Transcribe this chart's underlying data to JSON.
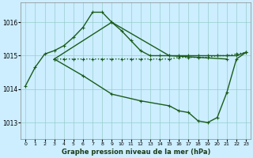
{
  "background_color": "#cceeff",
  "grid_color": "#99cccc",
  "line_color": "#1a5c1a",
  "title": "Graphe pression niveau de la mer (hPa)",
  "xlim": [
    -0.5,
    23.5
  ],
  "ylim": [
    1012.5,
    1016.6
  ],
  "yticks": [
    1013,
    1014,
    1015,
    1016
  ],
  "xticks": [
    0,
    1,
    2,
    3,
    4,
    5,
    6,
    7,
    8,
    9,
    10,
    11,
    12,
    13,
    14,
    15,
    16,
    17,
    18,
    19,
    20,
    21,
    22,
    23
  ],
  "series": [
    {
      "x": [
        3,
        4,
        5,
        6,
        7,
        8,
        9,
        10,
        11,
        12,
        13,
        14,
        15,
        16,
        17,
        18,
        19,
        20,
        21,
        22,
        23
      ],
      "y": [
        1014.9,
        1014.9,
        1014.9,
        1014.9,
        1014.9,
        1014.9,
        1014.9,
        1014.9,
        1014.9,
        1014.9,
        1014.9,
        1014.9,
        1014.9,
        1014.95,
        1014.95,
        1014.95,
        1014.95,
        1015.0,
        1015.0,
        1015.05,
        1015.1
      ],
      "ls": ":",
      "lw": 1.0,
      "marker": "+"
    },
    {
      "x": [
        0,
        1,
        2,
        3,
        4,
        5,
        6,
        7,
        8,
        9,
        10,
        11,
        12,
        13,
        14,
        15,
        16,
        17,
        18,
        19,
        20,
        21,
        22,
        23
      ],
      "y": [
        1014.1,
        1014.65,
        1015.05,
        1015.15,
        1015.3,
        1015.55,
        1015.85,
        1016.3,
        1016.3,
        1016.0,
        1015.75,
        1015.45,
        1015.15,
        1015.0,
        1015.0,
        1015.0,
        1015.0,
        1015.0,
        1015.0,
        1015.0,
        1015.0,
        1015.0,
        1015.0,
        1015.1
      ],
      "ls": "-",
      "lw": 1.0,
      "marker": "+"
    },
    {
      "x": [
        3,
        9,
        15,
        21
      ],
      "y": [
        1014.9,
        1016.0,
        1015.0,
        1014.9
      ],
      "ls": "-",
      "lw": 1.0,
      "marker": "+"
    },
    {
      "x": [
        3,
        6,
        9,
        12,
        15,
        16,
        17,
        18,
        19,
        20,
        21,
        22,
        23
      ],
      "y": [
        1014.9,
        1014.4,
        1013.85,
        1013.65,
        1013.5,
        1013.35,
        1013.3,
        1013.05,
        1013.0,
        1013.15,
        1013.9,
        1014.9,
        1015.1
      ],
      "ls": "-",
      "lw": 1.0,
      "marker": "+"
    }
  ]
}
